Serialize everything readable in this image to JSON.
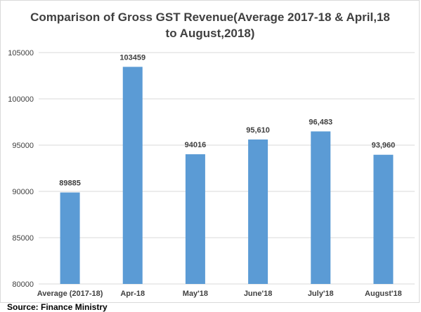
{
  "chart_data": {
    "type": "bar",
    "title_lines": [
      "Comparison of Gross GST Revenue(Average 2017-18 & April,18",
      "to August,2018)"
    ],
    "categories": [
      "Average (2017-18)",
      "Apr-18",
      "May'18",
      "June'18",
      "July'18",
      "August'18"
    ],
    "values": [
      89885,
      103459,
      94016,
      95610,
      96483,
      93960
    ],
    "data_labels": [
      "89885",
      "103459",
      "94016",
      "95,610",
      "96,483",
      "93,960"
    ],
    "ylim": [
      80000,
      105000
    ],
    "yticks": [
      80000,
      85000,
      90000,
      95000,
      100000,
      105000
    ],
    "bar_color": "#5b9bd5",
    "gridlines": true,
    "legend": "none"
  },
  "source": "Source: Finance Ministry"
}
